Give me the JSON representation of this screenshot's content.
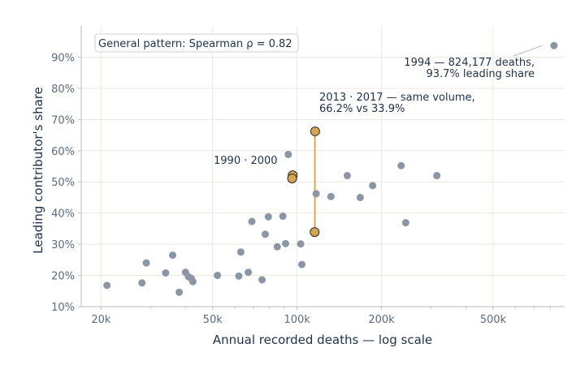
{
  "chart_data": {
    "type": "scatter",
    "xlabel": "Annual recorded deaths — log scale",
    "ylabel": "Leading contributor's share",
    "x_scale": "log",
    "xlim": [
      17000,
      900000
    ],
    "ylim": [
      10,
      100
    ],
    "x_ticks": [
      {
        "value": 20000,
        "label": "20k"
      },
      {
        "value": 50000,
        "label": "50k"
      },
      {
        "value": 100000,
        "label": "100k"
      },
      {
        "value": 200000,
        "label": "200k"
      },
      {
        "value": 500000,
        "label": "500k"
      }
    ],
    "y_ticks": [
      {
        "value": 10,
        "label": "10%"
      },
      {
        "value": 20,
        "label": "20%"
      },
      {
        "value": 30,
        "label": "30%"
      },
      {
        "value": 40,
        "label": "40%"
      },
      {
        "value": 50,
        "label": "50%"
      },
      {
        "value": 60,
        "label": "60%"
      },
      {
        "value": 70,
        "label": "70%"
      },
      {
        "value": 80,
        "label": "80%"
      },
      {
        "value": 90,
        "label": "90%"
      }
    ],
    "grid": true,
    "colors": {
      "point": "#8a95a5",
      "highlight": "#d6a64f",
      "highlight_stroke": "#2d2d2d",
      "connector": "#e8a550",
      "grid": "#ece8dc",
      "axis": "#bbbbbb",
      "text": "#1f3147",
      "tick": "#5a6a7e"
    },
    "points": [
      {
        "x": 21000,
        "y": 16.8
      },
      {
        "x": 28000,
        "y": 17.6
      },
      {
        "x": 29000,
        "y": 24.0
      },
      {
        "x": 34000,
        "y": 20.8
      },
      {
        "x": 36000,
        "y": 26.5
      },
      {
        "x": 38000,
        "y": 14.6
      },
      {
        "x": 40000,
        "y": 21.0
      },
      {
        "x": 41000,
        "y": 19.6
      },
      {
        "x": 42000,
        "y": 19.0
      },
      {
        "x": 42500,
        "y": 18.0
      },
      {
        "x": 52000,
        "y": 20.0
      },
      {
        "x": 62000,
        "y": 19.8
      },
      {
        "x": 63000,
        "y": 27.5
      },
      {
        "x": 67000,
        "y": 21.0
      },
      {
        "x": 69000,
        "y": 37.3
      },
      {
        "x": 75000,
        "y": 18.6
      },
      {
        "x": 77000,
        "y": 33.2
      },
      {
        "x": 79000,
        "y": 38.8
      },
      {
        "x": 85000,
        "y": 29.2
      },
      {
        "x": 89000,
        "y": 39.0
      },
      {
        "x": 91000,
        "y": 30.2
      },
      {
        "x": 93000,
        "y": 58.8
      },
      {
        "x": 103000,
        "y": 30.1
      },
      {
        "x": 104000,
        "y": 23.5
      },
      {
        "x": 117000,
        "y": 46.2
      },
      {
        "x": 132000,
        "y": 45.3
      },
      {
        "x": 151000,
        "y": 52.0
      },
      {
        "x": 168000,
        "y": 45.0
      },
      {
        "x": 186000,
        "y": 48.8
      },
      {
        "x": 235000,
        "y": 55.2
      },
      {
        "x": 244000,
        "y": 36.9
      },
      {
        "x": 315000,
        "y": 52.0
      },
      {
        "x": 824177,
        "y": 93.7
      }
    ],
    "highlights": [
      {
        "x": 96500,
        "y": 52.1
      },
      {
        "x": 96000,
        "y": 51.1
      },
      {
        "x": 116000,
        "y": 66.2
      },
      {
        "x": 115500,
        "y": 33.9
      }
    ],
    "connector": {
      "x": 115750,
      "y1": 33.9,
      "y2": 66.2
    },
    "annotations": {
      "pattern": "General pattern: Spearman ρ = 0.82",
      "pair_1990_2000": "1990 · 2000",
      "pair_2013_2017_line1": "2013 · 2017 — same volume,",
      "pair_2013_2017_line2": "66.2% vs 33.9%",
      "outlier_line1": "1994 — 824,177 deaths,",
      "outlier_line2": "93.7% leading share"
    }
  }
}
